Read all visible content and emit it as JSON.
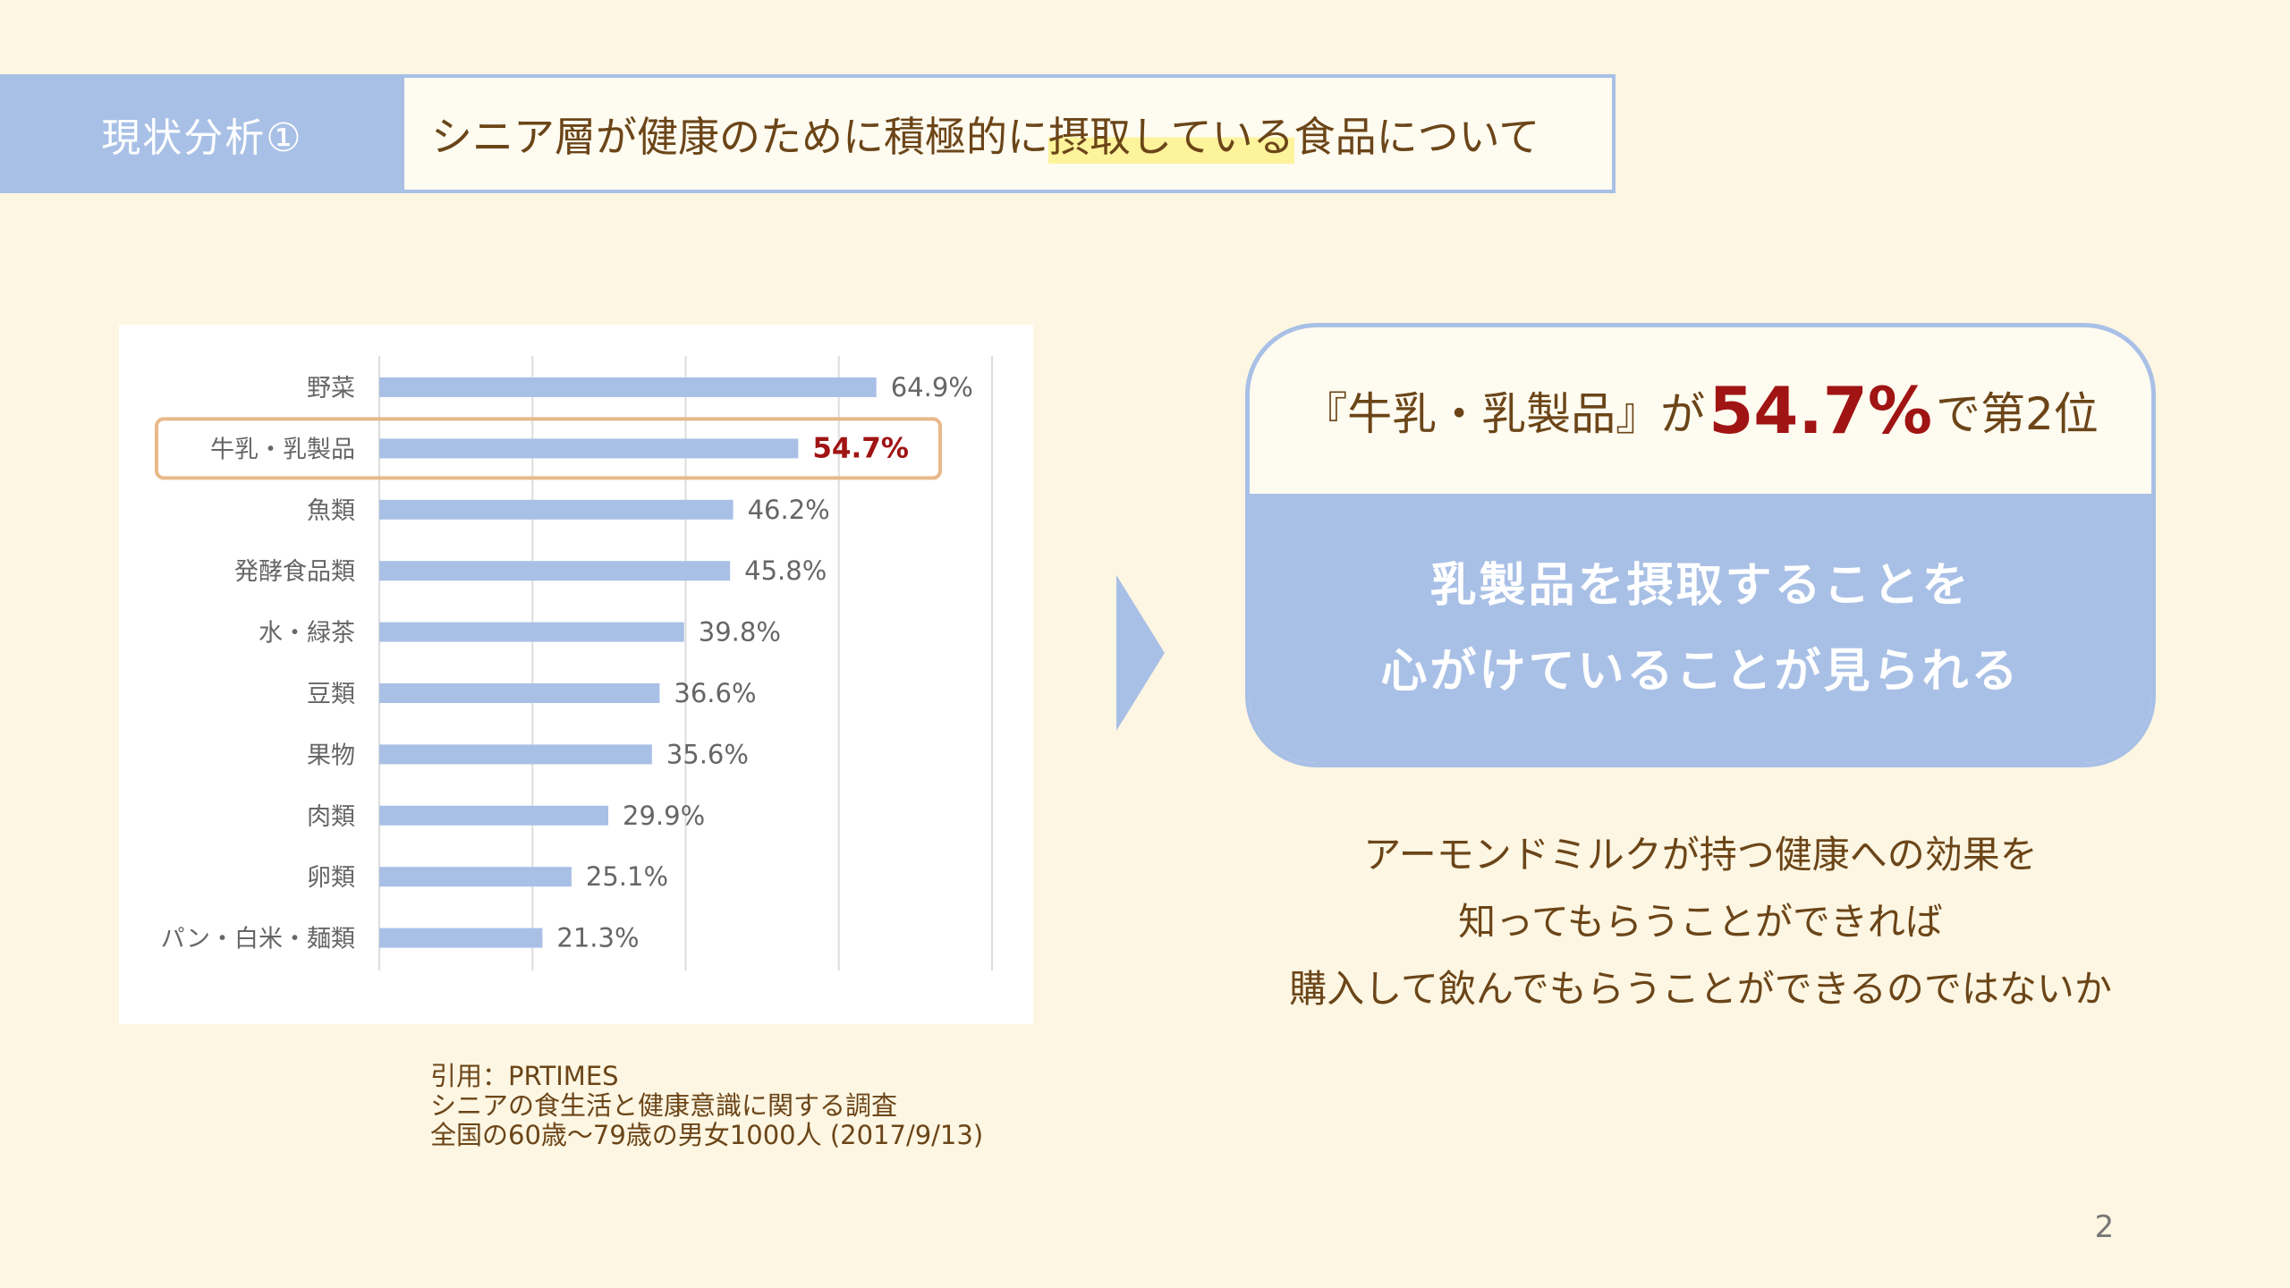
{
  "header": {
    "section_label": "現状分析①",
    "title_before": "シニア層が健康のために積極的に",
    "title_highlight": "摂取している",
    "title_after": "食品について"
  },
  "chart_data": {
    "type": "bar",
    "orientation": "horizontal",
    "categories": [
      "野菜",
      "牛乳・乳製品",
      "魚類",
      "発酵食品類",
      "水・緑茶",
      "豆類",
      "果物",
      "肉類",
      "卵類",
      "パン・白米・麺類"
    ],
    "values": [
      64.9,
      54.7,
      46.2,
      45.8,
      39.8,
      36.6,
      35.6,
      29.9,
      25.1,
      21.3
    ],
    "value_labels": [
      "64.9%",
      "54.7%",
      "46.2%",
      "45.8%",
      "39.8%",
      "36.6%",
      "35.6%",
      "29.9%",
      "25.1%",
      "21.3%"
    ],
    "highlighted_category": "牛乳・乳製品",
    "xlim": [
      0,
      80
    ],
    "grid": true,
    "colors": {
      "bar": "#a9c0e6",
      "highlight_value": "#a01414",
      "highlight_frame": "#e8b98a",
      "label": "#666666",
      "grid": "#dddddd"
    }
  },
  "citation": {
    "line1": "引用：PRTIMES",
    "line2": "シニアの食生活と健康意識に関する調査",
    "line3": "全国の60歳〜79歳の男女1000人 (2017/9/13)"
  },
  "result": {
    "prefix": "『牛乳・乳製品』が",
    "percent": "54.7%",
    "suffix": "で第2位",
    "message_line1": "乳製品を摂取することを",
    "message_line2": "心がけていることが見られる"
  },
  "conclusion": {
    "line1": "アーモンドミルクが持つ健康への効果を",
    "line2": "知ってもらうことができれば",
    "line3": "購入して飲んでもらうことができるのではないか"
  },
  "page_number": "2",
  "theme": {
    "background": "#fdf6e3",
    "accent_blue": "#a9c0e6",
    "text_brown": "#6b4518",
    "highlight_yellow": "#fdf39b",
    "emphasis_red": "#a01414"
  }
}
